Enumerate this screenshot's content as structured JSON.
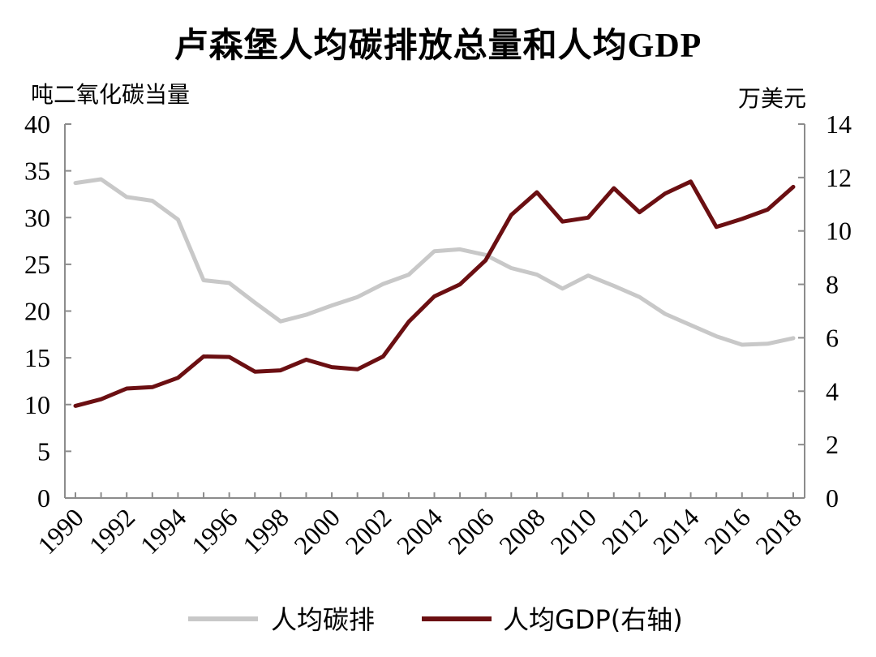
{
  "chart_data": {
    "type": "line",
    "title": "卢森堡人均碳排放总量和人均GDP",
    "ylabel_left": "吨二氧化碳当量",
    "ylabel_right": "万美元",
    "x": [
      1990,
      1991,
      1992,
      1993,
      1994,
      1995,
      1996,
      1997,
      1998,
      1999,
      2000,
      2001,
      2002,
      2003,
      2004,
      2005,
      2006,
      2007,
      2008,
      2009,
      2010,
      2011,
      2012,
      2013,
      2014,
      2015,
      2016,
      2017,
      2018
    ],
    "x_tick_labels": [
      "1990",
      "1992",
      "1994",
      "1996",
      "1998",
      "2000",
      "2002",
      "2004",
      "2006",
      "2008",
      "2010",
      "2012",
      "2014",
      "2016",
      "2018"
    ],
    "ylim_left": [
      0,
      40
    ],
    "yticks_left": [
      "0",
      "5",
      "10",
      "15",
      "20",
      "25",
      "30",
      "35",
      "40"
    ],
    "ylim_right": [
      0,
      14
    ],
    "yticks_right": [
      "0",
      "2",
      "4",
      "6",
      "8",
      "10",
      "12",
      "14"
    ],
    "grid": false,
    "legend_position": "bottom",
    "series": [
      {
        "name": "人均碳排",
        "axis": "left",
        "color": "#c8c8c8",
        "values": [
          33.7,
          34.1,
          32.2,
          31.8,
          29.8,
          23.3,
          23.0,
          20.9,
          18.9,
          19.6,
          20.6,
          21.5,
          22.9,
          23.9,
          26.4,
          26.6,
          26.0,
          24.6,
          23.9,
          22.4,
          23.8,
          22.7,
          21.5,
          19.7,
          18.5,
          17.3,
          16.4,
          16.5,
          17.1
        ]
      },
      {
        "name": "人均GDP(右轴)",
        "axis": "right",
        "color": "#6b0f12",
        "values": [
          3.45,
          3.7,
          4.1,
          4.15,
          4.5,
          5.3,
          5.28,
          4.73,
          4.78,
          5.18,
          4.9,
          4.82,
          5.3,
          6.6,
          7.55,
          8.0,
          8.9,
          10.6,
          11.45,
          10.35,
          10.5,
          11.6,
          10.7,
          11.4,
          11.85,
          10.15,
          10.45,
          10.8,
          11.65
        ]
      }
    ]
  }
}
